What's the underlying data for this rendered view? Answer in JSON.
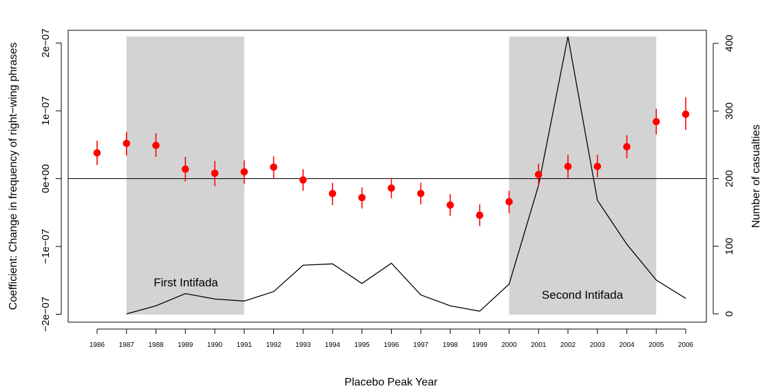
{
  "chart_data": {
    "type": "scatter",
    "xlabel": "Placebo Peak Year",
    "ylabel": "Coefficient: Change in frequency of right−wing phrases",
    "y2label": "Number of casualties",
    "x": [
      1986,
      1987,
      1988,
      1989,
      1990,
      1991,
      1992,
      1993,
      1994,
      1995,
      1996,
      1997,
      1998,
      1999,
      2000,
      2001,
      2002,
      2003,
      2004,
      2005,
      2006
    ],
    "ylim": [
      -2.05e-07,
      2.1e-07
    ],
    "y2lim": [
      -5,
      415
    ],
    "yticks": [
      {
        "value": -2e-07,
        "label": "−2e−07"
      },
      {
        "value": -1e-07,
        "label": "−1e−07"
      },
      {
        "value": 0,
        "label": "0e+00"
      },
      {
        "value": 1e-07,
        "label": "1e−07"
      },
      {
        "value": 2e-07,
        "label": "2e−07"
      }
    ],
    "y2ticks": [
      {
        "value": 0,
        "label": "0"
      },
      {
        "value": 100,
        "label": "100"
      },
      {
        "value": 200,
        "label": "200"
      },
      {
        "value": 300,
        "label": "300"
      },
      {
        "value": 400,
        "label": "400"
      }
    ],
    "series": [
      {
        "kind": "point_with_interval",
        "color": "#ff0000",
        "values": [
          3.8e-08,
          5.2e-08,
          4.9e-08,
          1.4e-08,
          8e-09,
          1e-08,
          1.7e-08,
          -2e-09,
          -2.2e-08,
          -2.8e-08,
          -1.4e-08,
          -2.2e-08,
          -3.9e-08,
          -5.4e-08,
          -3.4e-08,
          6e-09,
          1.8e-08,
          1.8e-08,
          4.7e-08,
          8.4e-08,
          9.5e-08
        ],
        "lower": [
          2e-08,
          3.4e-08,
          3.2e-08,
          -4e-09,
          -1.1e-08,
          -8e-09,
          0,
          -1.8e-08,
          -3.9e-08,
          -4.4e-08,
          -2.9e-08,
          -3.8e-08,
          -5.5e-08,
          -7e-08,
          -5.1e-08,
          -1.1e-08,
          0,
          2e-09,
          3e-08,
          6.5e-08,
          7.2e-08
        ],
        "upper": [
          5.6e-08,
          6.9e-08,
          6.7e-08,
          3.2e-08,
          2.6e-08,
          2.7e-08,
          3.3e-08,
          1.4e-08,
          -6e-09,
          -1.3e-08,
          1e-09,
          -6e-09,
          -2.3e-08,
          -3.8e-08,
          -1.8e-08,
          2.2e-08,
          3.5e-08,
          3.5e-08,
          6.4e-08,
          1.03e-07,
          1.2e-07
        ]
      },
      {
        "kind": "line",
        "axis": "right",
        "color": "#000000",
        "x": [
          1987,
          1988,
          1989,
          1990,
          1991,
          1992,
          1993,
          1994,
          1995,
          1996,
          1997,
          1998,
          1999,
          2000,
          2001,
          2002,
          2003,
          2004,
          2005,
          2006
        ],
        "values": [
          0,
          12,
          30,
          22,
          19,
          33,
          72,
          74,
          45,
          75,
          28,
          12,
          4,
          44,
          190,
          410,
          168,
          103,
          50,
          23
        ]
      }
    ],
    "reference_line": {
      "y": 0
    },
    "shaded_regions": [
      {
        "x_start": 1987,
        "x_end": 1991,
        "label": "First Intifada",
        "color": "#d3d3d3"
      },
      {
        "x_start": 2000,
        "x_end": 2005,
        "label": "Second Intifada",
        "color": "#d3d3d3"
      }
    ],
    "grid": false
  }
}
